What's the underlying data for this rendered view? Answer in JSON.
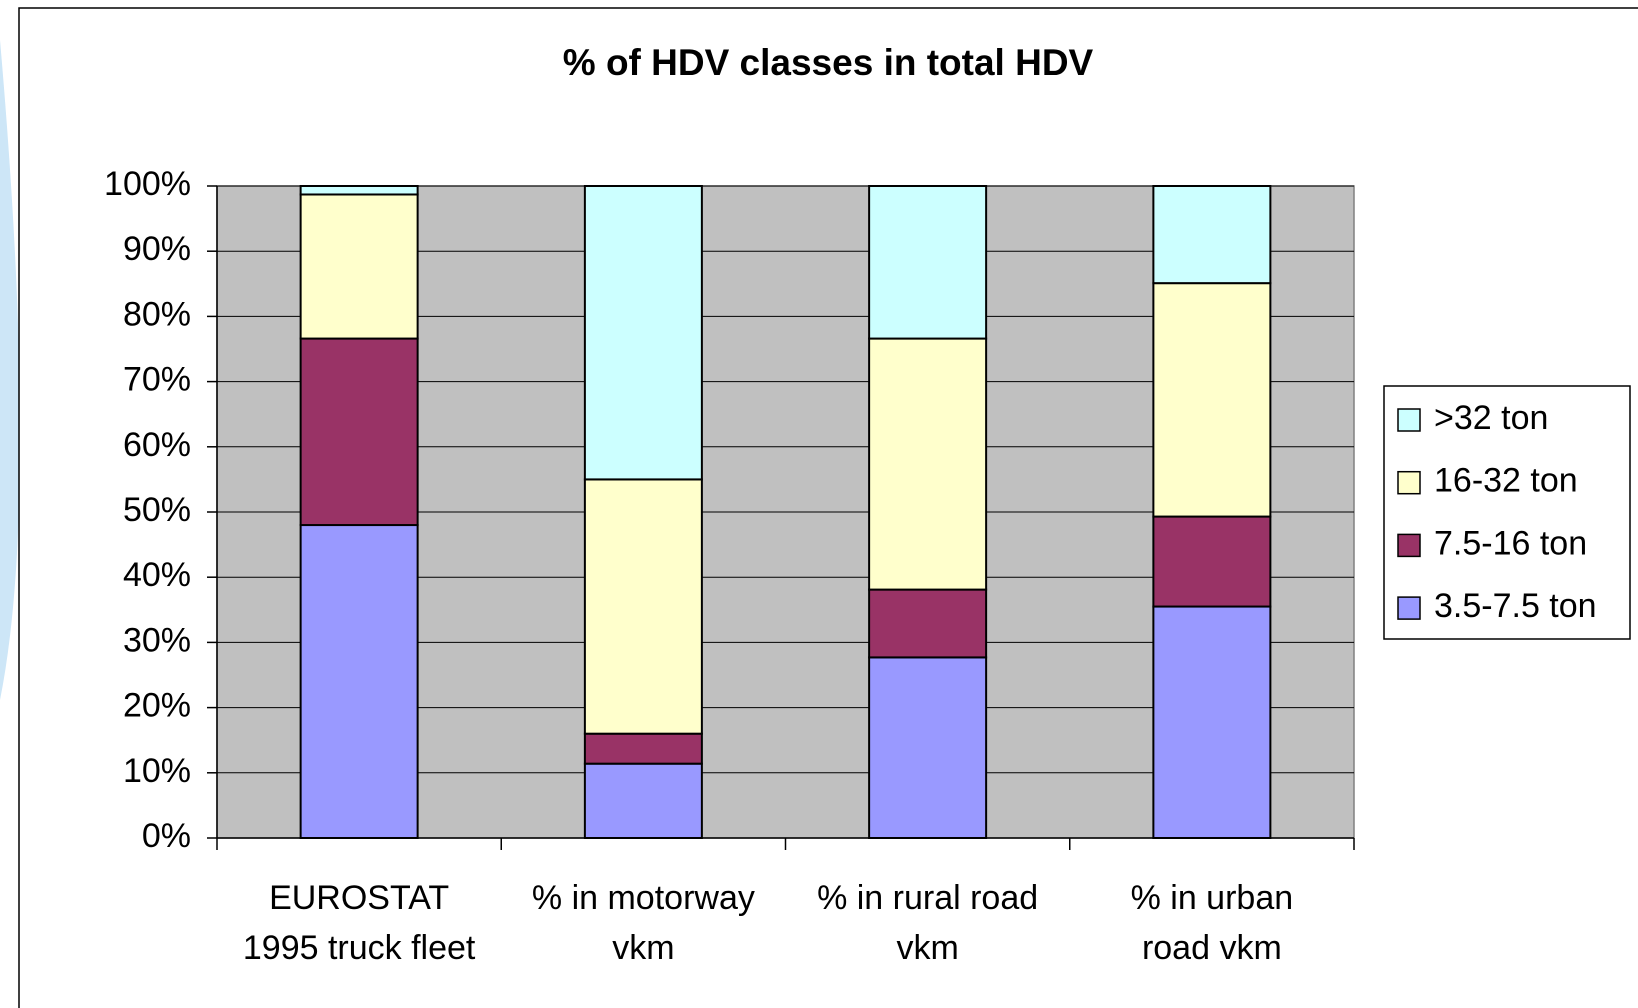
{
  "chart_data": {
    "type": "stacked_bar",
    "title": "% of HDV classes in total HDV",
    "categories": [
      "EUROSTAT\n1995 truck fleet",
      "% in motorway\nvkm",
      "% in rural road\nvkm",
      "% in urban\nroad vkm"
    ],
    "series": [
      {
        "name": "3.5-7.5 ton",
        "color": "#9999ff",
        "values": [
          48,
          11.4,
          27.7,
          35.5
        ]
      },
      {
        "name": "7.5-16 ton",
        "color": "#993366",
        "values": [
          28.6,
          4.6,
          10.4,
          13.8
        ]
      },
      {
        "name": "16-32 ton",
        "color": "#ffffcc",
        "values": [
          22.1,
          39,
          38.5,
          35.8
        ]
      },
      {
        "name": ">32 ton",
        "color": "#ccffff",
        "values": [
          1.3,
          45,
          23.4,
          14.9
        ]
      }
    ],
    "ylim": [
      0,
      100
    ],
    "yticks": [
      {
        "value": 0,
        "label": "0%"
      },
      {
        "value": 10,
        "label": "10%"
      },
      {
        "value": 20,
        "label": "20%"
      },
      {
        "value": 30,
        "label": "30%"
      },
      {
        "value": 40,
        "label": "40%"
      },
      {
        "value": 50,
        "label": "50%"
      },
      {
        "value": 60,
        "label": "60%"
      },
      {
        "value": 70,
        "label": "70%"
      },
      {
        "value": 80,
        "label": "80%"
      },
      {
        "value": 90,
        "label": "90%"
      },
      {
        "value": 100,
        "label": "100%"
      }
    ],
    "grid": true,
    "plot_background": "#c0c0c0",
    "legend": "right"
  }
}
